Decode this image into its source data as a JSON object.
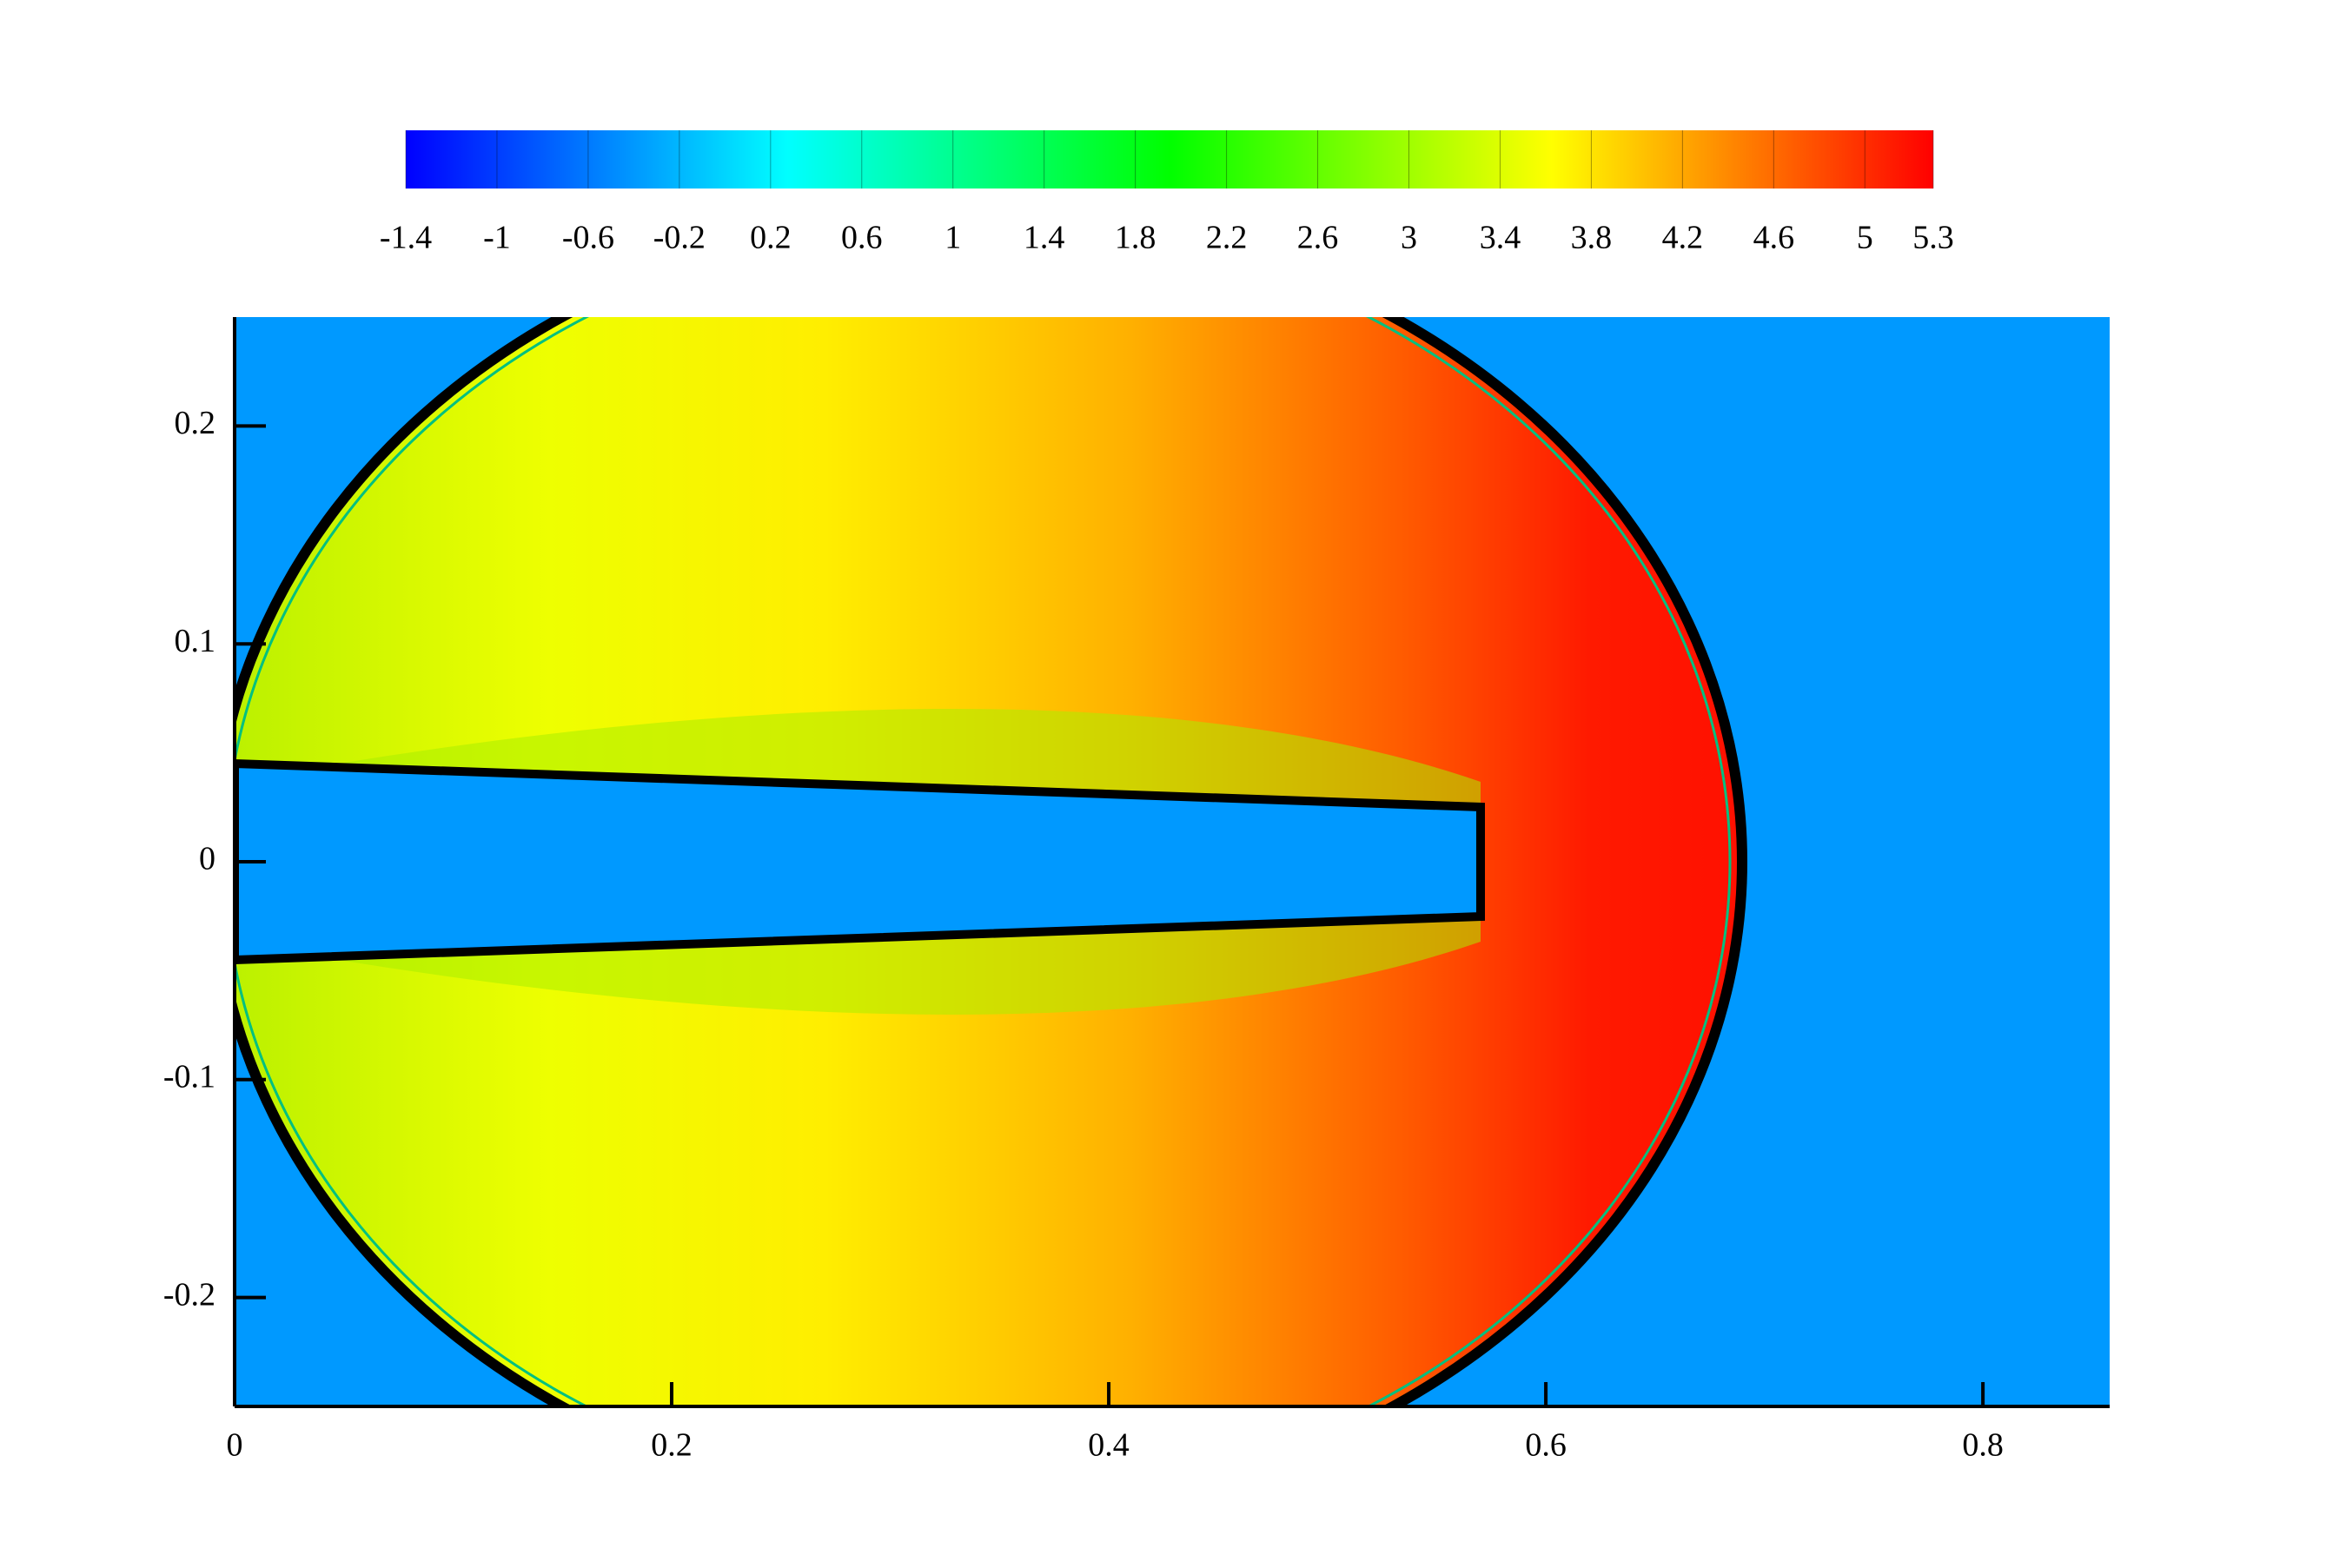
{
  "chart_data": {
    "type": "contour",
    "xlim": [
      0,
      0.858
    ],
    "ylim": [
      -0.25,
      0.25
    ],
    "xticks": [
      0,
      0.2,
      0.4,
      0.6,
      0.8
    ],
    "yticks": [
      -0.2,
      -0.1,
      0,
      0.1,
      0.2
    ],
    "colorbar": {
      "lim": [
        -1.4,
        5.3
      ],
      "ticks": [
        -1.4,
        -1,
        -0.6,
        -0.2,
        0.2,
        0.6,
        1,
        1.4,
        1.8,
        2.2,
        2.6,
        3,
        3.4,
        3.8,
        4.2,
        4.6,
        5,
        5.3
      ],
      "colormap": [
        "#0000ff",
        "#00ffff",
        "#00ff00",
        "#ffff00",
        "#ff0000"
      ]
    }
  }
}
